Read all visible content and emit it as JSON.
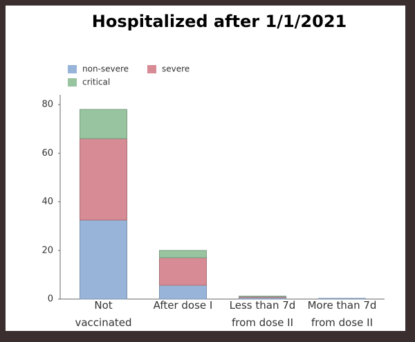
{
  "chart_data": {
    "type": "stacked-bar",
    "title": "Hospitalized after 1/1/2021",
    "categories": [
      "Not\nvaccinated",
      "After dose I",
      "Less than 7d\nfrom dose II",
      "More than 7d\nfrom dose II"
    ],
    "series": [
      {
        "name": "non-severe",
        "color": "#98b4d8",
        "values": [
          32.5,
          5.7,
          0.6,
          0.3
        ]
      },
      {
        "name": "severe",
        "color": "#d68b95",
        "values": [
          33.5,
          11.3,
          0.4,
          0
        ]
      },
      {
        "name": "critical",
        "color": "#98c4a0",
        "values": [
          12,
          3,
          0.2,
          0
        ]
      }
    ],
    "ylim": [
      0,
      84
    ],
    "yticks": [
      0,
      20,
      40,
      60,
      80
    ],
    "legend": "upper left"
  }
}
